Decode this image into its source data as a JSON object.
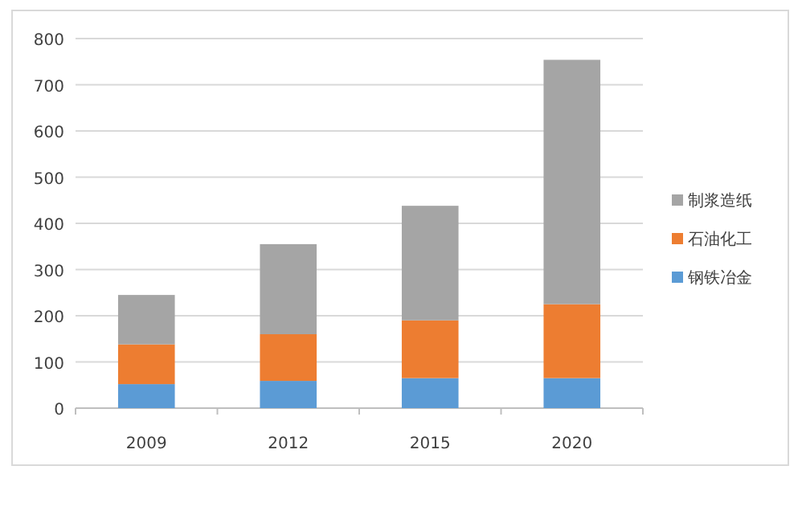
{
  "chart_data": {
    "type": "bar",
    "stacked": true,
    "categories": [
      "2009",
      "2012",
      "2015",
      "2020"
    ],
    "series": [
      {
        "name": "钢铁冶金",
        "color": "#5b9bd5",
        "values": [
          52,
          59,
          65,
          65
        ]
      },
      {
        "name": "石油化工",
        "color": "#ed7d31",
        "values": [
          86,
          101,
          125,
          160
        ]
      },
      {
        "name": "制浆造纸",
        "color": "#a5a5a5",
        "values": [
          107,
          195,
          248,
          529
        ]
      }
    ],
    "ylim": [
      0,
      800
    ],
    "yticks": [
      0,
      100,
      200,
      300,
      400,
      500,
      600,
      700,
      800
    ],
    "grid": "y",
    "legend": "right"
  }
}
